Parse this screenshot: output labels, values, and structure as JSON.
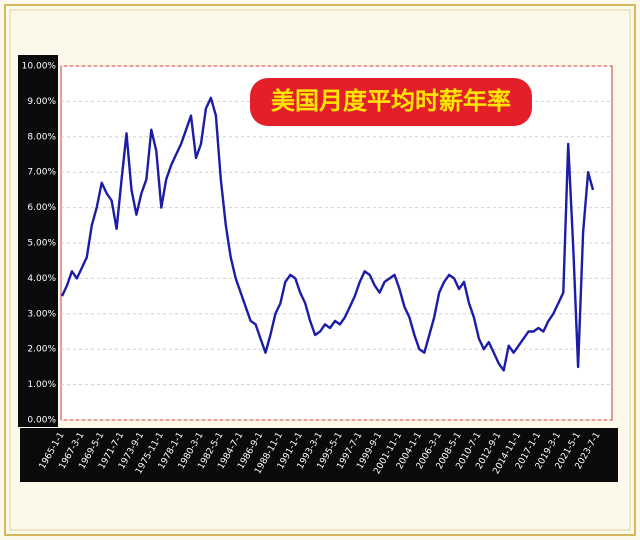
{
  "chart_data": {
    "type": "line",
    "title": "美国月度平均时薪年率",
    "categories": [
      "1965-1-1",
      null,
      null,
      null,
      "1967-3-1",
      null,
      null,
      null,
      "1969-5-1",
      null,
      null,
      null,
      "1971-7-1",
      null,
      null,
      null,
      "1973-9-1",
      null,
      null,
      null,
      "1975-11-1",
      null,
      null,
      null,
      "1978-1-1",
      null,
      null,
      null,
      "1980-3-1",
      null,
      null,
      null,
      "1982-5-1",
      null,
      null,
      null,
      "1984-7-1",
      null,
      null,
      null,
      "1986-9-1",
      null,
      null,
      null,
      "1988-11-1",
      null,
      null,
      null,
      "1991-1-1",
      null,
      null,
      null,
      "1993-3-1",
      null,
      null,
      null,
      "1995-5-1",
      null,
      null,
      null,
      "1997-7-1",
      null,
      null,
      null,
      "1999-9-1",
      null,
      null,
      null,
      "2001-11-1",
      null,
      null,
      null,
      "2004-1-1",
      null,
      null,
      null,
      "2006-3-1",
      null,
      null,
      null,
      "2008-5-1",
      null,
      null,
      null,
      "2010-7-1",
      null,
      null,
      null,
      "2012-9-1",
      null,
      null,
      null,
      "2014-11-1",
      null,
      null,
      null,
      "2017-1-1",
      null,
      null,
      null,
      "2019-3-1",
      null,
      null,
      null,
      "2021-5-1",
      null,
      null,
      null,
      "2023-7-1"
    ],
    "series": [
      {
        "color": "#1c1ca6",
        "values": [
          3.5,
          3.8,
          4.2,
          4.0,
          4.3,
          4.6,
          5.5,
          6.0,
          6.7,
          6.4,
          6.2,
          5.4,
          6.8,
          8.1,
          6.5,
          5.8,
          6.4,
          6.8,
          8.2,
          7.6,
          6.0,
          6.8,
          7.2,
          7.5,
          7.8,
          8.2,
          8.6,
          7.4,
          7.8,
          8.8,
          9.1,
          8.6,
          6.8,
          5.5,
          4.6,
          4.0,
          3.6,
          3.2,
          2.8,
          2.7,
          2.3,
          1.9,
          2.4,
          3.0,
          3.3,
          3.9,
          4.1,
          4.0,
          3.6,
          3.3,
          2.8,
          2.4,
          2.5,
          2.7,
          2.6,
          2.8,
          2.7,
          2.9,
          3.2,
          3.5,
          3.9,
          4.2,
          4.1,
          3.8,
          3.6,
          3.9,
          4.0,
          4.1,
          3.7,
          3.2,
          2.9,
          2.4,
          2.0,
          1.9,
          2.4,
          2.9,
          3.6,
          3.9,
          4.1,
          4.0,
          3.7,
          3.9,
          3.3,
          2.9,
          2.3,
          2.0,
          2.2,
          1.9,
          1.6,
          1.4,
          2.1,
          1.9,
          2.1,
          2.3,
          2.5,
          2.5,
          2.6,
          2.5,
          2.8,
          3.0,
          3.3,
          3.6,
          7.8,
          4.9,
          1.5,
          5.3,
          7.0,
          6.5,
          null
        ]
      }
    ],
    "ylim": [
      0,
      10
    ],
    "yticks": [
      {
        "value": 0,
        "label": "0.00%"
      },
      {
        "value": 1,
        "label": "1.00%"
      },
      {
        "value": 2,
        "label": "2.00%"
      },
      {
        "value": 3,
        "label": "3.00%"
      },
      {
        "value": 4,
        "label": "4.00%"
      },
      {
        "value": 5,
        "label": "5.00%"
      },
      {
        "value": 6,
        "label": "6.00%"
      },
      {
        "value": 7,
        "label": "7.00%"
      },
      {
        "value": 8,
        "label": "8.00%"
      },
      {
        "value": 9,
        "label": "9.00%"
      },
      {
        "value": 10,
        "label": "10.00%"
      }
    ],
    "grid": true
  }
}
